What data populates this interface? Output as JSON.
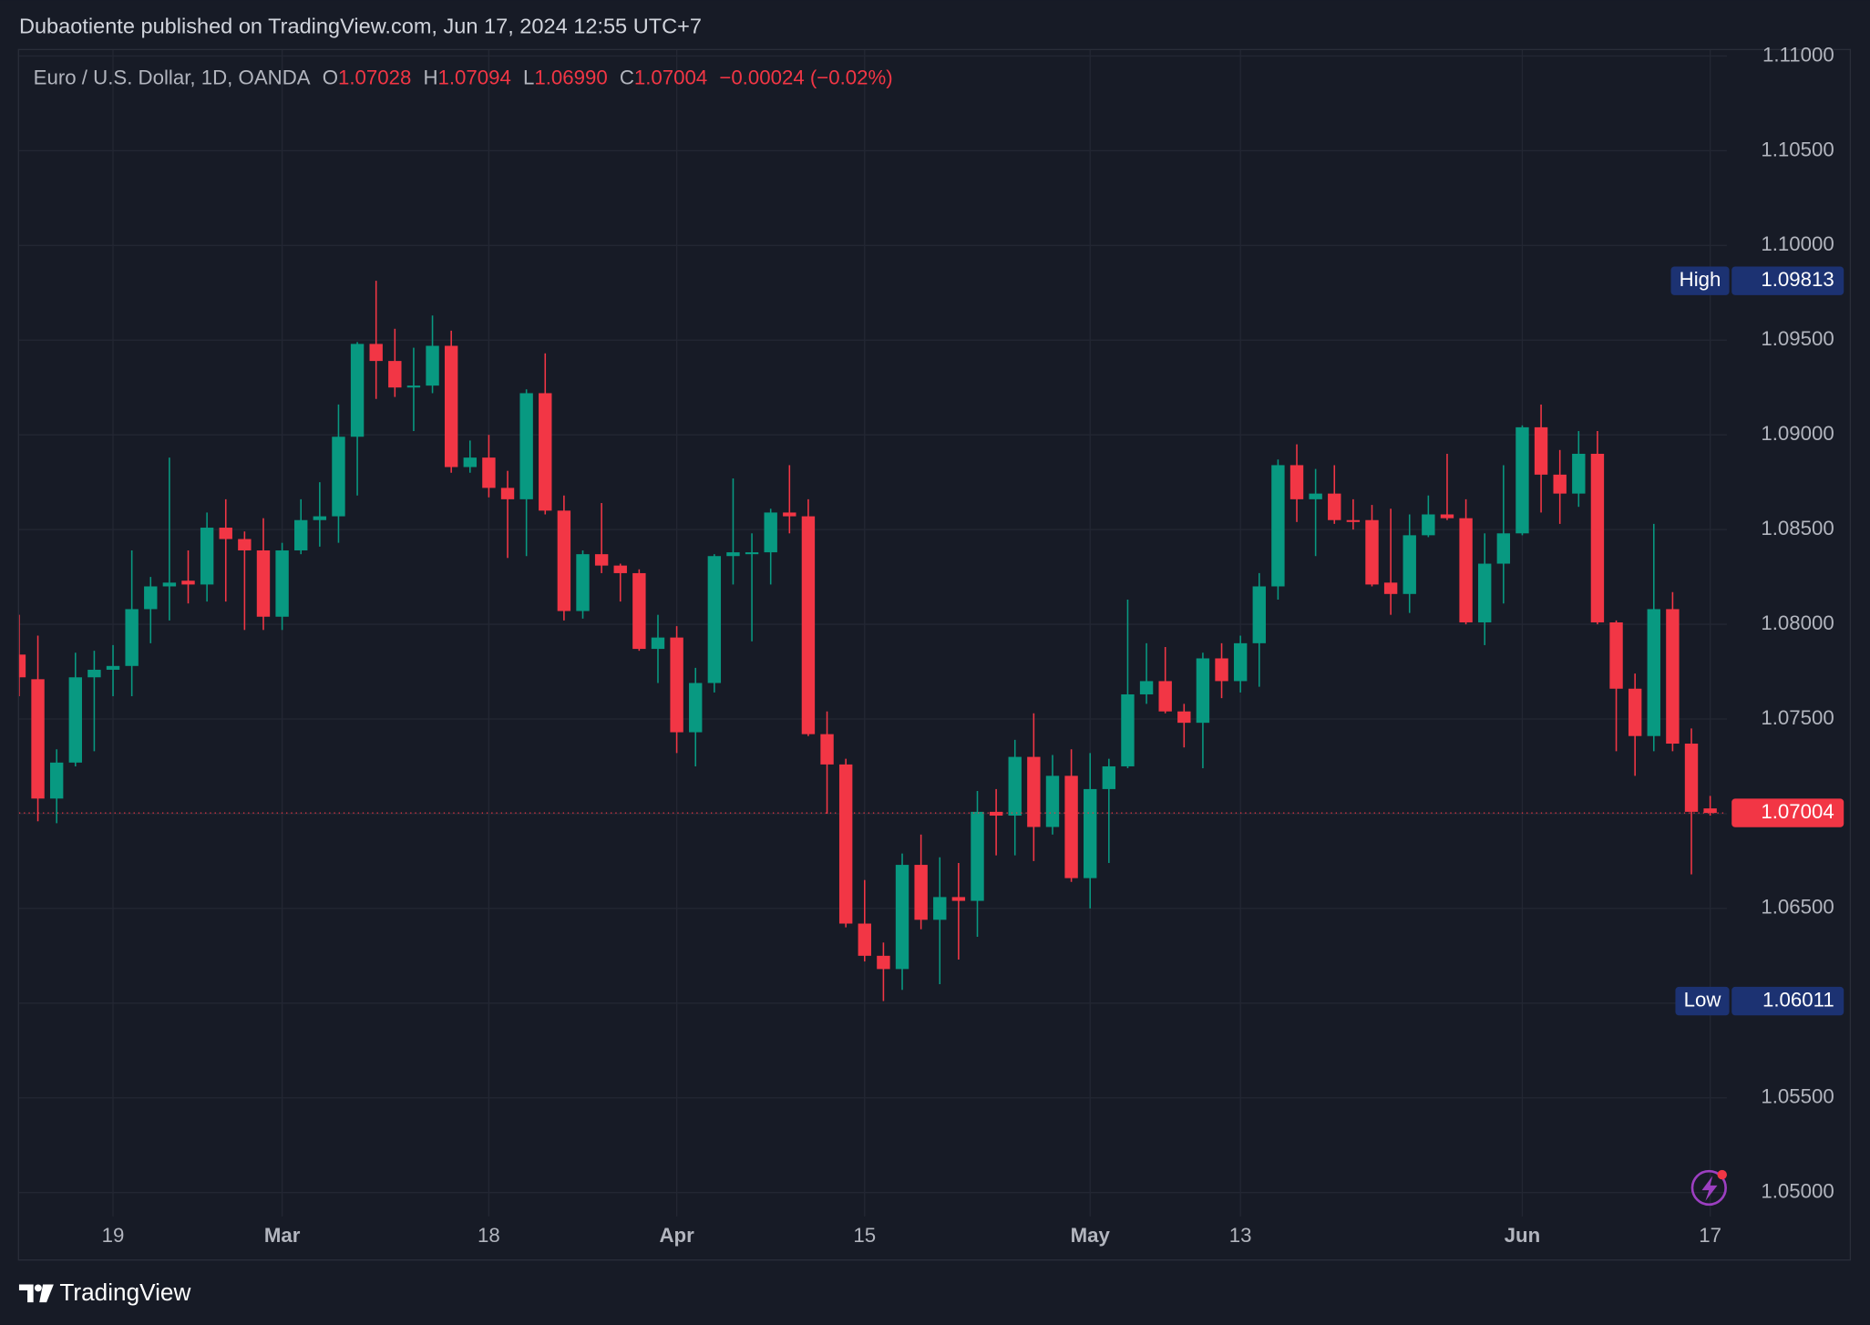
{
  "chart_data": {
    "type": "candlestick",
    "attribution": "Dubaotiente published on TradingView.com, Jun 17, 2024 12:55 UTC+7",
    "symbol": "Euro / U.S. Dollar, 1D, OANDA",
    "ohlc_legend": [
      {
        "key": "O",
        "value": "1.07028"
      },
      {
        "key": "H",
        "value": "1.07094"
      },
      {
        "key": "L",
        "value": "1.06990"
      },
      {
        "key": "C",
        "value": "1.07004"
      }
    ],
    "change": "−0.00024 (−0.02%)",
    "branding": "TradingView",
    "up_color": "#089981",
    "down_color": "#f23645",
    "grid": true,
    "categories": [
      null,
      null,
      null,
      null,
      null,
      "19",
      null,
      null,
      null,
      null,
      null,
      null,
      null,
      null,
      "Mar",
      null,
      null,
      null,
      null,
      null,
      null,
      null,
      null,
      null,
      null,
      "18",
      null,
      null,
      null,
      null,
      null,
      null,
      null,
      null,
      null,
      "Apr",
      null,
      null,
      null,
      null,
      null,
      null,
      null,
      null,
      null,
      "15",
      null,
      null,
      null,
      null,
      null,
      null,
      null,
      null,
      null,
      null,
      null,
      "May",
      null,
      null,
      null,
      null,
      null,
      null,
      null,
      "13",
      null,
      null,
      null,
      null,
      null,
      null,
      null,
      null,
      null,
      null,
      null,
      null,
      null,
      null,
      "Jun",
      null,
      null,
      null,
      null,
      null,
      null,
      null,
      null,
      null,
      "17"
    ],
    "open": [
      1.0784,
      1.0771,
      1.0708,
      1.0727,
      1.0772,
      1.0776,
      1.0778,
      1.0808,
      1.082,
      1.0823,
      1.0821,
      1.0851,
      1.0845,
      1.0839,
      1.0804,
      1.0839,
      1.0855,
      1.0857,
      1.0899,
      1.0948,
      1.0939,
      1.0925,
      1.0926,
      1.0947,
      1.0883,
      1.0888,
      1.0872,
      1.0866,
      1.0922,
      1.086,
      1.0807,
      1.0837,
      1.0831,
      1.0827,
      1.0787,
      1.0793,
      1.0743,
      1.0769,
      1.0836,
      1.0837,
      1.0838,
      1.0859,
      1.0857,
      1.0742,
      1.0726,
      1.0642,
      1.0625,
      1.0618,
      1.0673,
      1.0644,
      1.0656,
      1.0654,
      1.0701,
      1.0699,
      1.073,
      1.0693,
      1.072,
      1.0666,
      1.0713,
      1.0725,
      1.0763,
      1.077,
      1.0754,
      1.0748,
      1.0782,
      1.077,
      1.079,
      1.082,
      1.0884,
      1.0866,
      1.0869,
      1.0855,
      1.0855,
      1.0822,
      1.0816,
      1.0847,
      1.0858,
      1.0856,
      1.0801,
      1.0832,
      1.0848,
      1.0904,
      1.0879,
      1.0869,
      1.089,
      1.0801,
      1.0766,
      1.0741,
      1.0808,
      1.0737,
      1.07028
    ],
    "high": [
      1.0805,
      1.0794,
      1.0734,
      1.0785,
      1.0786,
      1.0789,
      1.0839,
      1.0825,
      1.0888,
      1.0839,
      1.0859,
      1.0866,
      1.0849,
      1.0856,
      1.0843,
      1.0866,
      1.0875,
      1.0916,
      1.0949,
      1.09813,
      1.0956,
      1.0946,
      1.0963,
      1.0955,
      1.0897,
      1.09,
      1.0881,
      1.0924,
      1.0943,
      1.0868,
      1.0839,
      1.0864,
      1.0832,
      1.0829,
      1.0805,
      1.0799,
      1.0777,
      1.0837,
      1.0877,
      1.0848,
      1.0861,
      1.0884,
      1.0866,
      1.0754,
      1.0729,
      1.0665,
      1.0632,
      1.0679,
      1.0689,
      1.0677,
      1.0674,
      1.0712,
      1.0713,
      1.0739,
      1.0753,
      1.0731,
      1.0734,
      1.0732,
      1.0729,
      1.0813,
      1.079,
      1.0788,
      1.0758,
      1.0785,
      1.079,
      1.0794,
      1.0827,
      1.0887,
      1.0895,
      1.0882,
      1.0884,
      1.0866,
      1.0863,
      1.0861,
      1.0858,
      1.0868,
      1.089,
      1.0866,
      1.0848,
      1.0884,
      1.0905,
      1.0916,
      1.0892,
      1.0902,
      1.0902,
      1.0802,
      1.0774,
      1.0853,
      1.0817,
      1.0745,
      1.07094
    ],
    "low": [
      1.0762,
      1.0696,
      1.0695,
      1.0725,
      1.0733,
      1.0762,
      1.0762,
      1.079,
      1.0802,
      1.0811,
      1.0812,
      1.0812,
      1.0797,
      1.0797,
      1.0797,
      1.0837,
      1.0841,
      1.0843,
      1.0868,
      1.0919,
      1.092,
      1.0902,
      1.0922,
      1.088,
      1.088,
      1.0867,
      1.0835,
      1.0836,
      1.0858,
      1.0802,
      1.0803,
      1.0827,
      1.0812,
      1.0786,
      1.0769,
      1.0732,
      1.0725,
      1.0764,
      1.0821,
      1.0791,
      1.0821,
      1.0848,
      1.0741,
      1.07,
      1.064,
      1.0622,
      1.06011,
      1.0607,
      1.0639,
      1.061,
      1.0623,
      1.0635,
      1.0678,
      1.0678,
      1.0675,
      1.0689,
      1.0664,
      1.065,
      1.0674,
      1.0724,
      1.0758,
      1.0753,
      1.0735,
      1.0724,
      1.0761,
      1.0764,
      1.0767,
      1.0813,
      1.0854,
      1.0836,
      1.0853,
      1.085,
      1.082,
      1.0805,
      1.0806,
      1.0846,
      1.0855,
      1.08,
      1.0789,
      1.0811,
      1.0847,
      1.0859,
      1.0853,
      1.0862,
      1.08,
      1.0733,
      1.072,
      1.0733,
      1.0733,
      1.0668,
      1.0699
    ],
    "close": [
      1.0772,
      1.0708,
      1.0727,
      1.0772,
      1.0776,
      1.0778,
      1.0808,
      1.082,
      1.0822,
      1.0821,
      1.0851,
      1.0845,
      1.0839,
      1.0804,
      1.0839,
      1.0855,
      1.0857,
      1.0899,
      1.0948,
      1.0939,
      1.0925,
      1.0926,
      1.0947,
      1.0883,
      1.0888,
      1.0872,
      1.0866,
      1.0922,
      1.086,
      1.0807,
      1.0837,
      1.0831,
      1.0827,
      1.0787,
      1.0793,
      1.0743,
      1.0769,
      1.0836,
      1.0838,
      1.0838,
      1.0859,
      1.0857,
      1.0742,
      1.0726,
      1.0642,
      1.0625,
      1.0618,
      1.0673,
      1.0644,
      1.0656,
      1.0654,
      1.0701,
      1.0699,
      1.073,
      1.0693,
      1.072,
      1.0666,
      1.0713,
      1.0725,
      1.0763,
      1.077,
      1.0754,
      1.0748,
      1.0782,
      1.077,
      1.079,
      1.082,
      1.0884,
      1.0866,
      1.0869,
      1.0855,
      1.0854,
      1.0821,
      1.0816,
      1.0847,
      1.0858,
      1.0856,
      1.0801,
      1.0832,
      1.0848,
      1.0904,
      1.0879,
      1.0869,
      1.089,
      1.0801,
      1.0766,
      1.0741,
      1.0808,
      1.0737,
      1.0701,
      1.07004
    ],
    "ylim": [
      1.04874,
      1.11031
    ],
    "yticks": [
      {
        "value": 1.05,
        "label": "1.05000"
      },
      {
        "value": 1.055,
        "label": "1.05500"
      },
      {
        "value": 1.06,
        "label": "1.06000"
      },
      {
        "value": 1.065,
        "label": "1.06500"
      },
      {
        "value": 1.07,
        "label": "1.07000"
      },
      {
        "value": 1.075,
        "label": "1.07500"
      },
      {
        "value": 1.08,
        "label": "1.08000"
      },
      {
        "value": 1.085,
        "label": "1.08500"
      },
      {
        "value": 1.09,
        "label": "1.09000"
      },
      {
        "value": 1.095,
        "label": "1.09500"
      },
      {
        "value": 1.1,
        "label": "1.10000"
      },
      {
        "value": 1.105,
        "label": "1.10500"
      },
      {
        "value": 1.11,
        "label": "1.11000"
      }
    ],
    "high_marker": {
      "label": "High",
      "value": 1.09813
    },
    "low_marker": {
      "label": "Low",
      "value": 1.06011
    },
    "last_price": 1.07004
  }
}
